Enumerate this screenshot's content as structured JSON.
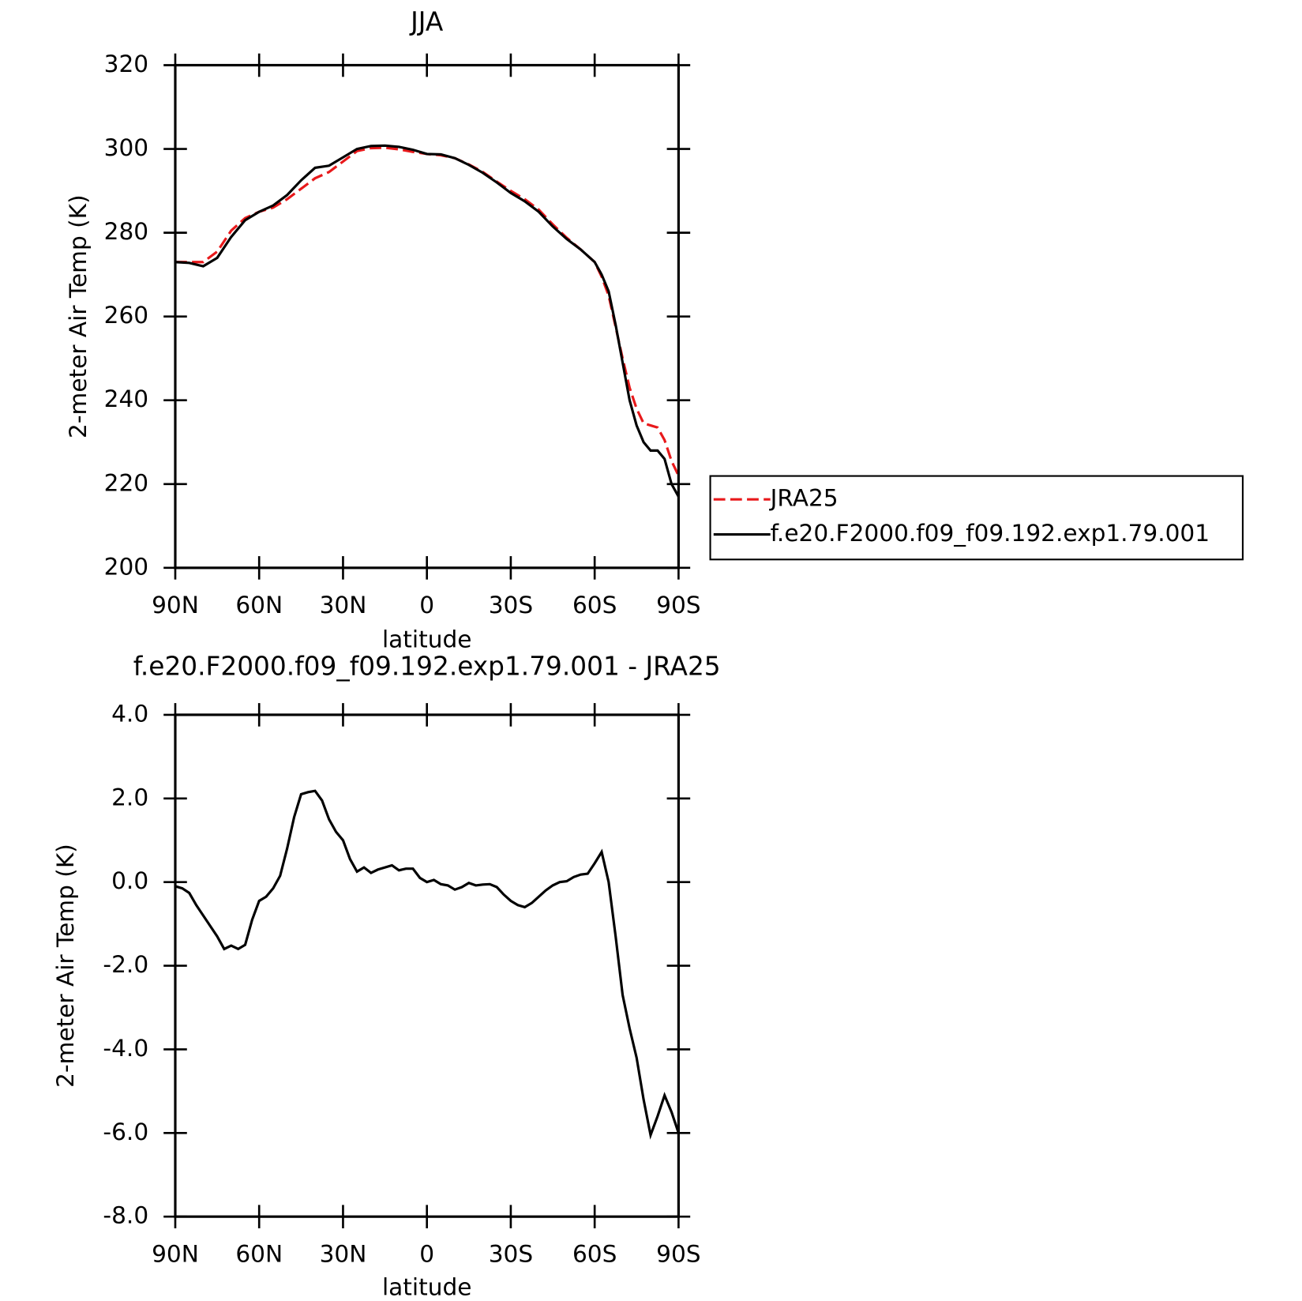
{
  "chart_data": [
    {
      "type": "line",
      "title": "JJA",
      "xlabel": "latitude",
      "ylabel": "2-meter Air Temp (K)",
      "x": [
        90,
        85,
        80,
        75,
        70,
        65,
        60,
        55,
        50,
        45,
        40,
        35,
        30,
        25,
        20,
        15,
        10,
        5,
        0,
        -5,
        -10,
        -15,
        -20,
        -25,
        -30,
        -35,
        -40,
        -45,
        -50,
        -55,
        -60,
        -62.5,
        -65,
        -67.5,
        -70,
        -72.5,
        -75,
        -77.5,
        -80,
        -82.5,
        -85,
        -87.5,
        -90
      ],
      "series": [
        {
          "name": "JRA25",
          "color": "#e8191b",
          "line_style": "dashed",
          "values": [
            273,
            273,
            273,
            275.5,
            280.5,
            283.5,
            285,
            286,
            288,
            290.5,
            293,
            294.5,
            297,
            299.5,
            300.2,
            300.3,
            299.9,
            299.3,
            298.8,
            298.5,
            297.8,
            296.3,
            294.5,
            292.2,
            290,
            288,
            285.5,
            282,
            278.8,
            276,
            273,
            269.5,
            265,
            257.5,
            250,
            243,
            238,
            234.5,
            234,
            233.5,
            230.5,
            225.5,
            222
          ]
        },
        {
          "name": "f.e20.F2000.f09_f09.192.exp1.79.001",
          "color": "#000000",
          "line_style": "solid",
          "values": [
            273,
            272.8,
            272,
            274,
            279,
            283,
            285,
            286.5,
            289,
            292.5,
            295.5,
            296,
            298,
            300,
            300.7,
            300.8,
            300.5,
            299.8,
            298.8,
            298.7,
            297.8,
            296.2,
            294.3,
            292,
            289.5,
            287.5,
            285,
            281.5,
            278.5,
            276,
            273,
            270,
            266,
            258,
            249,
            240,
            234,
            230,
            228,
            228,
            226,
            220,
            217
          ]
        }
      ],
      "xlim": [
        90,
        -90
      ],
      "xticks": [
        {
          "value": 90,
          "label": "90N"
        },
        {
          "value": 60,
          "label": "60N"
        },
        {
          "value": 30,
          "label": "30N"
        },
        0,
        {
          "value": -30,
          "label": "30S"
        },
        {
          "value": -60,
          "label": "60S"
        },
        {
          "value": -90,
          "label": "90S"
        }
      ],
      "ylim": [
        200,
        320
      ],
      "yticks": [
        200,
        220,
        240,
        260,
        280,
        300,
        320
      ],
      "legend": "right"
    },
    {
      "type": "line",
      "title": "f.e20.F2000.f09_f09.192.exp1.79.001 - JRA25",
      "xlabel": "latitude",
      "ylabel": "2-meter Air Temp (K)",
      "x": [
        90,
        87.5,
        85,
        82.5,
        80,
        77.5,
        75,
        72.5,
        70,
        67.5,
        65,
        62.5,
        60,
        57.5,
        55,
        52.5,
        50,
        47.5,
        45,
        42.5,
        40,
        37.5,
        35,
        32.5,
        30,
        27.5,
        25,
        22.5,
        20,
        17.5,
        15,
        12.5,
        10,
        7.5,
        5,
        2.5,
        0,
        -2.5,
        -5,
        -7.5,
        -10,
        -12.5,
        -15,
        -17.5,
        -20,
        -22.5,
        -25,
        -27.5,
        -30,
        -32.5,
        -35,
        -37.5,
        -40,
        -42.5,
        -45,
        -47.5,
        -50,
        -52.5,
        -55,
        -57.5,
        -60,
        -62.5,
        -65,
        -67.5,
        -70,
        -72.5,
        -75,
        -77.5,
        -80,
        -82.5,
        -85,
        -87.5,
        -90
      ],
      "series": [
        {
          "color": "#000000",
          "line_style": "solid",
          "values": [
            -0.1,
            -0.15,
            -0.26,
            -0.55,
            -0.8,
            -1.05,
            -1.3,
            -1.6,
            -1.52,
            -1.6,
            -1.5,
            -0.9,
            -0.45,
            -0.35,
            -0.15,
            0.15,
            0.8,
            1.55,
            2.1,
            2.15,
            2.18,
            1.95,
            1.5,
            1.2,
            1.0,
            0.55,
            0.25,
            0.35,
            0.22,
            0.3,
            0.35,
            0.4,
            0.28,
            0.32,
            0.32,
            0.1,
            0.0,
            0.05,
            -0.05,
            -0.08,
            -0.18,
            -0.12,
            -0.02,
            -0.08,
            -0.06,
            -0.05,
            -0.12,
            -0.3,
            -0.45,
            -0.55,
            -0.6,
            -0.5,
            -0.35,
            -0.2,
            -0.08,
            0,
            0.02,
            0.12,
            0.18,
            0.2,
            0.45,
            0.72,
            0,
            -1.3,
            -2.7,
            -3.5,
            -4.2,
            -5.2,
            -6.05,
            -5.6,
            -5.1,
            -5.5,
            -6.0
          ]
        }
      ],
      "xlim": [
        90,
        -90
      ],
      "xticks": [
        {
          "value": 90,
          "label": "90N"
        },
        {
          "value": 60,
          "label": "60N"
        },
        {
          "value": 30,
          "label": "30N"
        },
        0,
        {
          "value": -30,
          "label": "30S"
        },
        {
          "value": -60,
          "label": "60S"
        },
        {
          "value": -90,
          "label": "90S"
        }
      ],
      "ylim": [
        -8,
        4
      ],
      "yticks": [
        {
          "value": -8,
          "label": "-8.0"
        },
        {
          "value": -6,
          "label": "-6.0"
        },
        {
          "value": -4,
          "label": "-4.0"
        },
        {
          "value": -2,
          "label": "-2.0"
        },
        {
          "value": 0,
          "label": "0.0"
        },
        {
          "value": 2,
          "label": "2.0"
        },
        {
          "value": 4,
          "label": "4.0"
        }
      ]
    }
  ]
}
